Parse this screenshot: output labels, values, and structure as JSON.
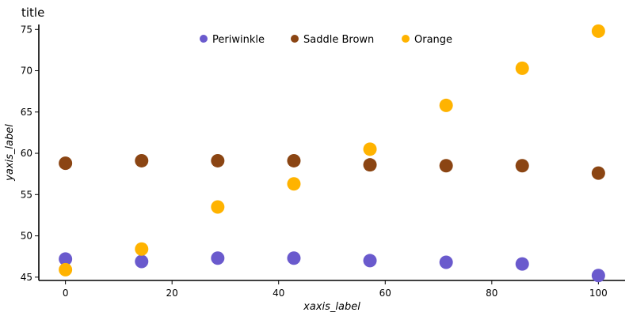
{
  "chart_data": {
    "type": "scatter",
    "title": "title",
    "xlabel": "xaxis_label",
    "ylabel": "yaxis_label",
    "xlim": [
      -5,
      105
    ],
    "ylim": [
      44.6,
      75.6
    ],
    "x": [
      0,
      14.29,
      28.57,
      42.86,
      57.14,
      71.43,
      85.71,
      100
    ],
    "x_ticks": [
      0,
      20,
      40,
      60,
      80,
      100
    ],
    "y_ticks": [
      45,
      50,
      55,
      60,
      65,
      70,
      75
    ],
    "grid": false,
    "legend_position": "top-center",
    "series": [
      {
        "name": "Periwinkle",
        "color": "#6a5acd",
        "values": [
          47.2,
          46.9,
          47.3,
          47.3,
          47.0,
          46.8,
          46.6,
          45.2
        ]
      },
      {
        "name": "Saddle Brown",
        "color": "#8b4513",
        "values": [
          58.8,
          59.1,
          59.1,
          59.1,
          58.6,
          58.5,
          58.5,
          57.6
        ]
      },
      {
        "name": "Orange",
        "color": "#ffb300",
        "values": [
          45.9,
          48.4,
          53.5,
          56.3,
          60.5,
          65.8,
          70.3,
          74.8
        ]
      }
    ]
  }
}
